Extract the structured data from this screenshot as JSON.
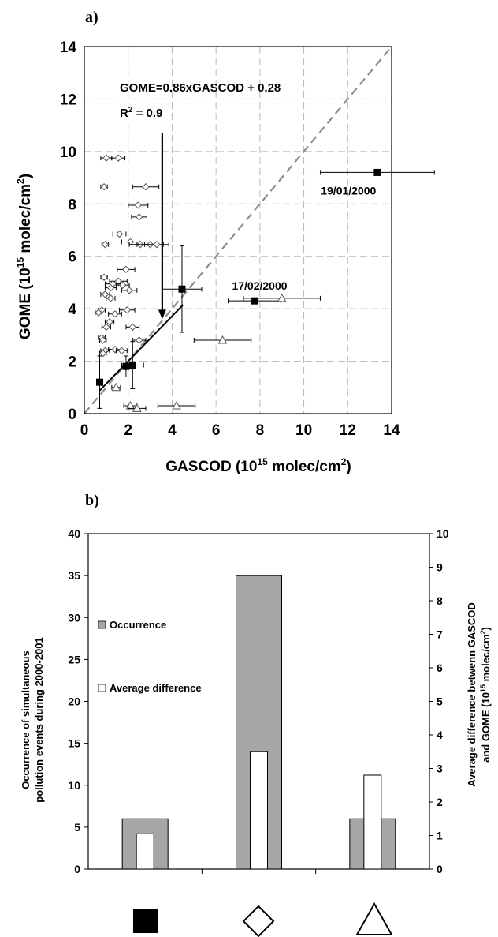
{
  "chart_data": [
    {
      "panel_label": "a)",
      "type": "scatter",
      "xlabel_main": "GASCOD (10",
      "xlabel_exp": "15",
      "xlabel_tail": " molec/cm",
      "xlabel_sq": "2",
      "xlabel_close": ")",
      "ylabel_main": "GOME (10",
      "ylabel_exp": "15",
      "ylabel_tail": " molec/cm",
      "ylabel_sq": "2",
      "ylabel_close": ")",
      "xlim": [
        0,
        14
      ],
      "ylim": [
        0,
        14
      ],
      "xticks": [
        "0",
        "2",
        "4",
        "6",
        "8",
        "10",
        "12",
        "14"
      ],
      "yticks": [
        "0",
        "2",
        "4",
        "6",
        "8",
        "10",
        "12",
        "14"
      ],
      "grid": true,
      "regression_text": "GOME=0.86xGASCOD + 0.28",
      "r2_text": "R",
      "r2_sup": "2",
      "r2_value": " = 0.9",
      "fit": {
        "slope": 0.86,
        "intercept": 0.28,
        "x_range": [
          0.7,
          4.5
        ]
      },
      "one_to_one": {
        "x_range": [
          0,
          14
        ]
      },
      "arrow": {
        "x": 3.55,
        "y_from": 10.7,
        "y_to": 3.6
      },
      "annotations": [
        {
          "text": "19/01/2000",
          "x": 13.4,
          "y": 9.2
        },
        {
          "text": "17/02/2000",
          "x": 7.7,
          "y": 4.3
        }
      ],
      "series": [
        {
          "marker": "square",
          "points": [
            {
              "x": 0.7,
              "y": 1.2,
              "xerr": 0.1,
              "yerr": 1.0
            },
            {
              "x": 1.9,
              "y": 1.8,
              "xerr": 0.2,
              "yerr": 0.4
            },
            {
              "x": 2.2,
              "y": 1.85,
              "xerr": 0.5,
              "yerr": 0.9
            },
            {
              "x": 4.45,
              "y": 4.75,
              "xerr": 0.9,
              "yerr": 1.65
            },
            {
              "x": 7.75,
              "y": 4.3,
              "xerr": 1.2,
              "yerr": 0
            },
            {
              "x": 13.35,
              "y": 9.2,
              "xerr": 2.6,
              "yerr": 0
            }
          ]
        },
        {
          "marker": "diamond",
          "points": [
            {
              "x": 1.0,
              "y": 9.75,
              "xerr": 0.25
            },
            {
              "x": 1.55,
              "y": 9.75,
              "xerr": 0.3
            },
            {
              "x": 0.9,
              "y": 8.65,
              "xerr": 0.15
            },
            {
              "x": 2.8,
              "y": 8.65,
              "xerr": 0.6
            },
            {
              "x": 2.45,
              "y": 7.95,
              "xerr": 0.45
            },
            {
              "x": 2.5,
              "y": 7.5,
              "xerr": 0.35
            },
            {
              "x": 1.6,
              "y": 6.85,
              "xerr": 0.3
            },
            {
              "x": 2.1,
              "y": 6.55,
              "xerr": 0.4
            },
            {
              "x": 0.95,
              "y": 6.45,
              "xerr": 0.15
            },
            {
              "x": 2.55,
              "y": 6.45,
              "xerr": 0.5
            },
            {
              "x": 3.0,
              "y": 6.45,
              "xerr": 0.6
            },
            {
              "x": 3.3,
              "y": 6.45,
              "xerr": 0.55
            },
            {
              "x": 1.9,
              "y": 5.5,
              "xerr": 0.4
            },
            {
              "x": 0.9,
              "y": 5.2,
              "xerr": 0.15
            },
            {
              "x": 1.55,
              "y": 5.05,
              "xerr": 0.4
            },
            {
              "x": 1.3,
              "y": 4.95,
              "xerr": 0.35
            },
            {
              "x": 1.75,
              "y": 4.9,
              "xerr": 0.3
            },
            {
              "x": 1.2,
              "y": 4.8,
              "xerr": 0.25
            },
            {
              "x": 0.95,
              "y": 4.55,
              "xerr": 0.2
            },
            {
              "x": 2.05,
              "y": 4.7,
              "xerr": 0.35
            },
            {
              "x": 1.2,
              "y": 4.4,
              "xerr": 0.2
            },
            {
              "x": 0.8,
              "y": 3.95,
              "xerr": 0.15
            },
            {
              "x": 1.95,
              "y": 3.95,
              "xerr": 0.35
            },
            {
              "x": 0.65,
              "y": 3.85,
              "xerr": 0.15
            },
            {
              "x": 1.4,
              "y": 3.8,
              "xerr": 0.3
            },
            {
              "x": 1.15,
              "y": 3.5,
              "xerr": 0.2
            },
            {
              "x": 1.0,
              "y": 3.3,
              "xerr": 0.2
            },
            {
              "x": 2.2,
              "y": 3.3,
              "xerr": 0.3
            },
            {
              "x": 0.8,
              "y": 2.9,
              "xerr": 0.15
            },
            {
              "x": 0.85,
              "y": 2.8,
              "xerr": 0.15
            },
            {
              "x": 0.95,
              "y": 2.4,
              "xerr": 0.2
            },
            {
              "x": 1.4,
              "y": 2.45,
              "xerr": 0.3
            },
            {
              "x": 1.7,
              "y": 2.4,
              "xerr": 0.25
            },
            {
              "x": 2.5,
              "y": 2.8,
              "xerr": 0.3
            },
            {
              "x": 0.85,
              "y": 2.3,
              "xerr": 0.15
            }
          ]
        },
        {
          "marker": "triangle",
          "points": [
            {
              "x": 9.0,
              "y": 4.4,
              "xerr": 1.75
            },
            {
              "x": 6.3,
              "y": 2.8,
              "xerr": 1.3
            },
            {
              "x": 1.45,
              "y": 1.0,
              "xerr": 0.2
            },
            {
              "x": 2.1,
              "y": 0.3,
              "xerr": 0.3
            },
            {
              "x": 2.4,
              "y": 0.2,
              "xerr": 0.4
            },
            {
              "x": 4.2,
              "y": 0.3,
              "xerr": 0.85
            }
          ]
        }
      ]
    },
    {
      "panel_label": "b)",
      "type": "bar",
      "ylabel_left_1": "Occurrence of simultaneous",
      "ylabel_left_2": "pollution events during 2000-2001",
      "ylabel_right_1": "Average difference betwenn GASCOD",
      "ylabel_right_2_main": "and GOME (10",
      "ylabel_right_2_exp": "15",
      "ylabel_right_2_tail": " molec/cm",
      "ylabel_right_2_sq": "2",
      "ylabel_right_2_close": ")",
      "ylim_left": [
        0,
        40
      ],
      "ylim_right": [
        0,
        10
      ],
      "yticks_left": [
        "0",
        "5",
        "10",
        "15",
        "20",
        "25",
        "30",
        "35",
        "40"
      ],
      "yticks_right": [
        "0",
        "1",
        "2",
        "3",
        "4",
        "5",
        "6",
        "7",
        "8",
        "9",
        "10"
      ],
      "categories": [
        "filled-square",
        "open-diamond",
        "open-triangle"
      ],
      "series": [
        {
          "name": "Occurrence",
          "axis": "left",
          "values": [
            6,
            35,
            6
          ],
          "color": "#a6a6a6"
        },
        {
          "name": "Average difference",
          "axis": "right",
          "values": [
            1.05,
            3.5,
            2.8
          ],
          "color": "#ffffff"
        }
      ],
      "legend_position": "upper-left"
    }
  ]
}
